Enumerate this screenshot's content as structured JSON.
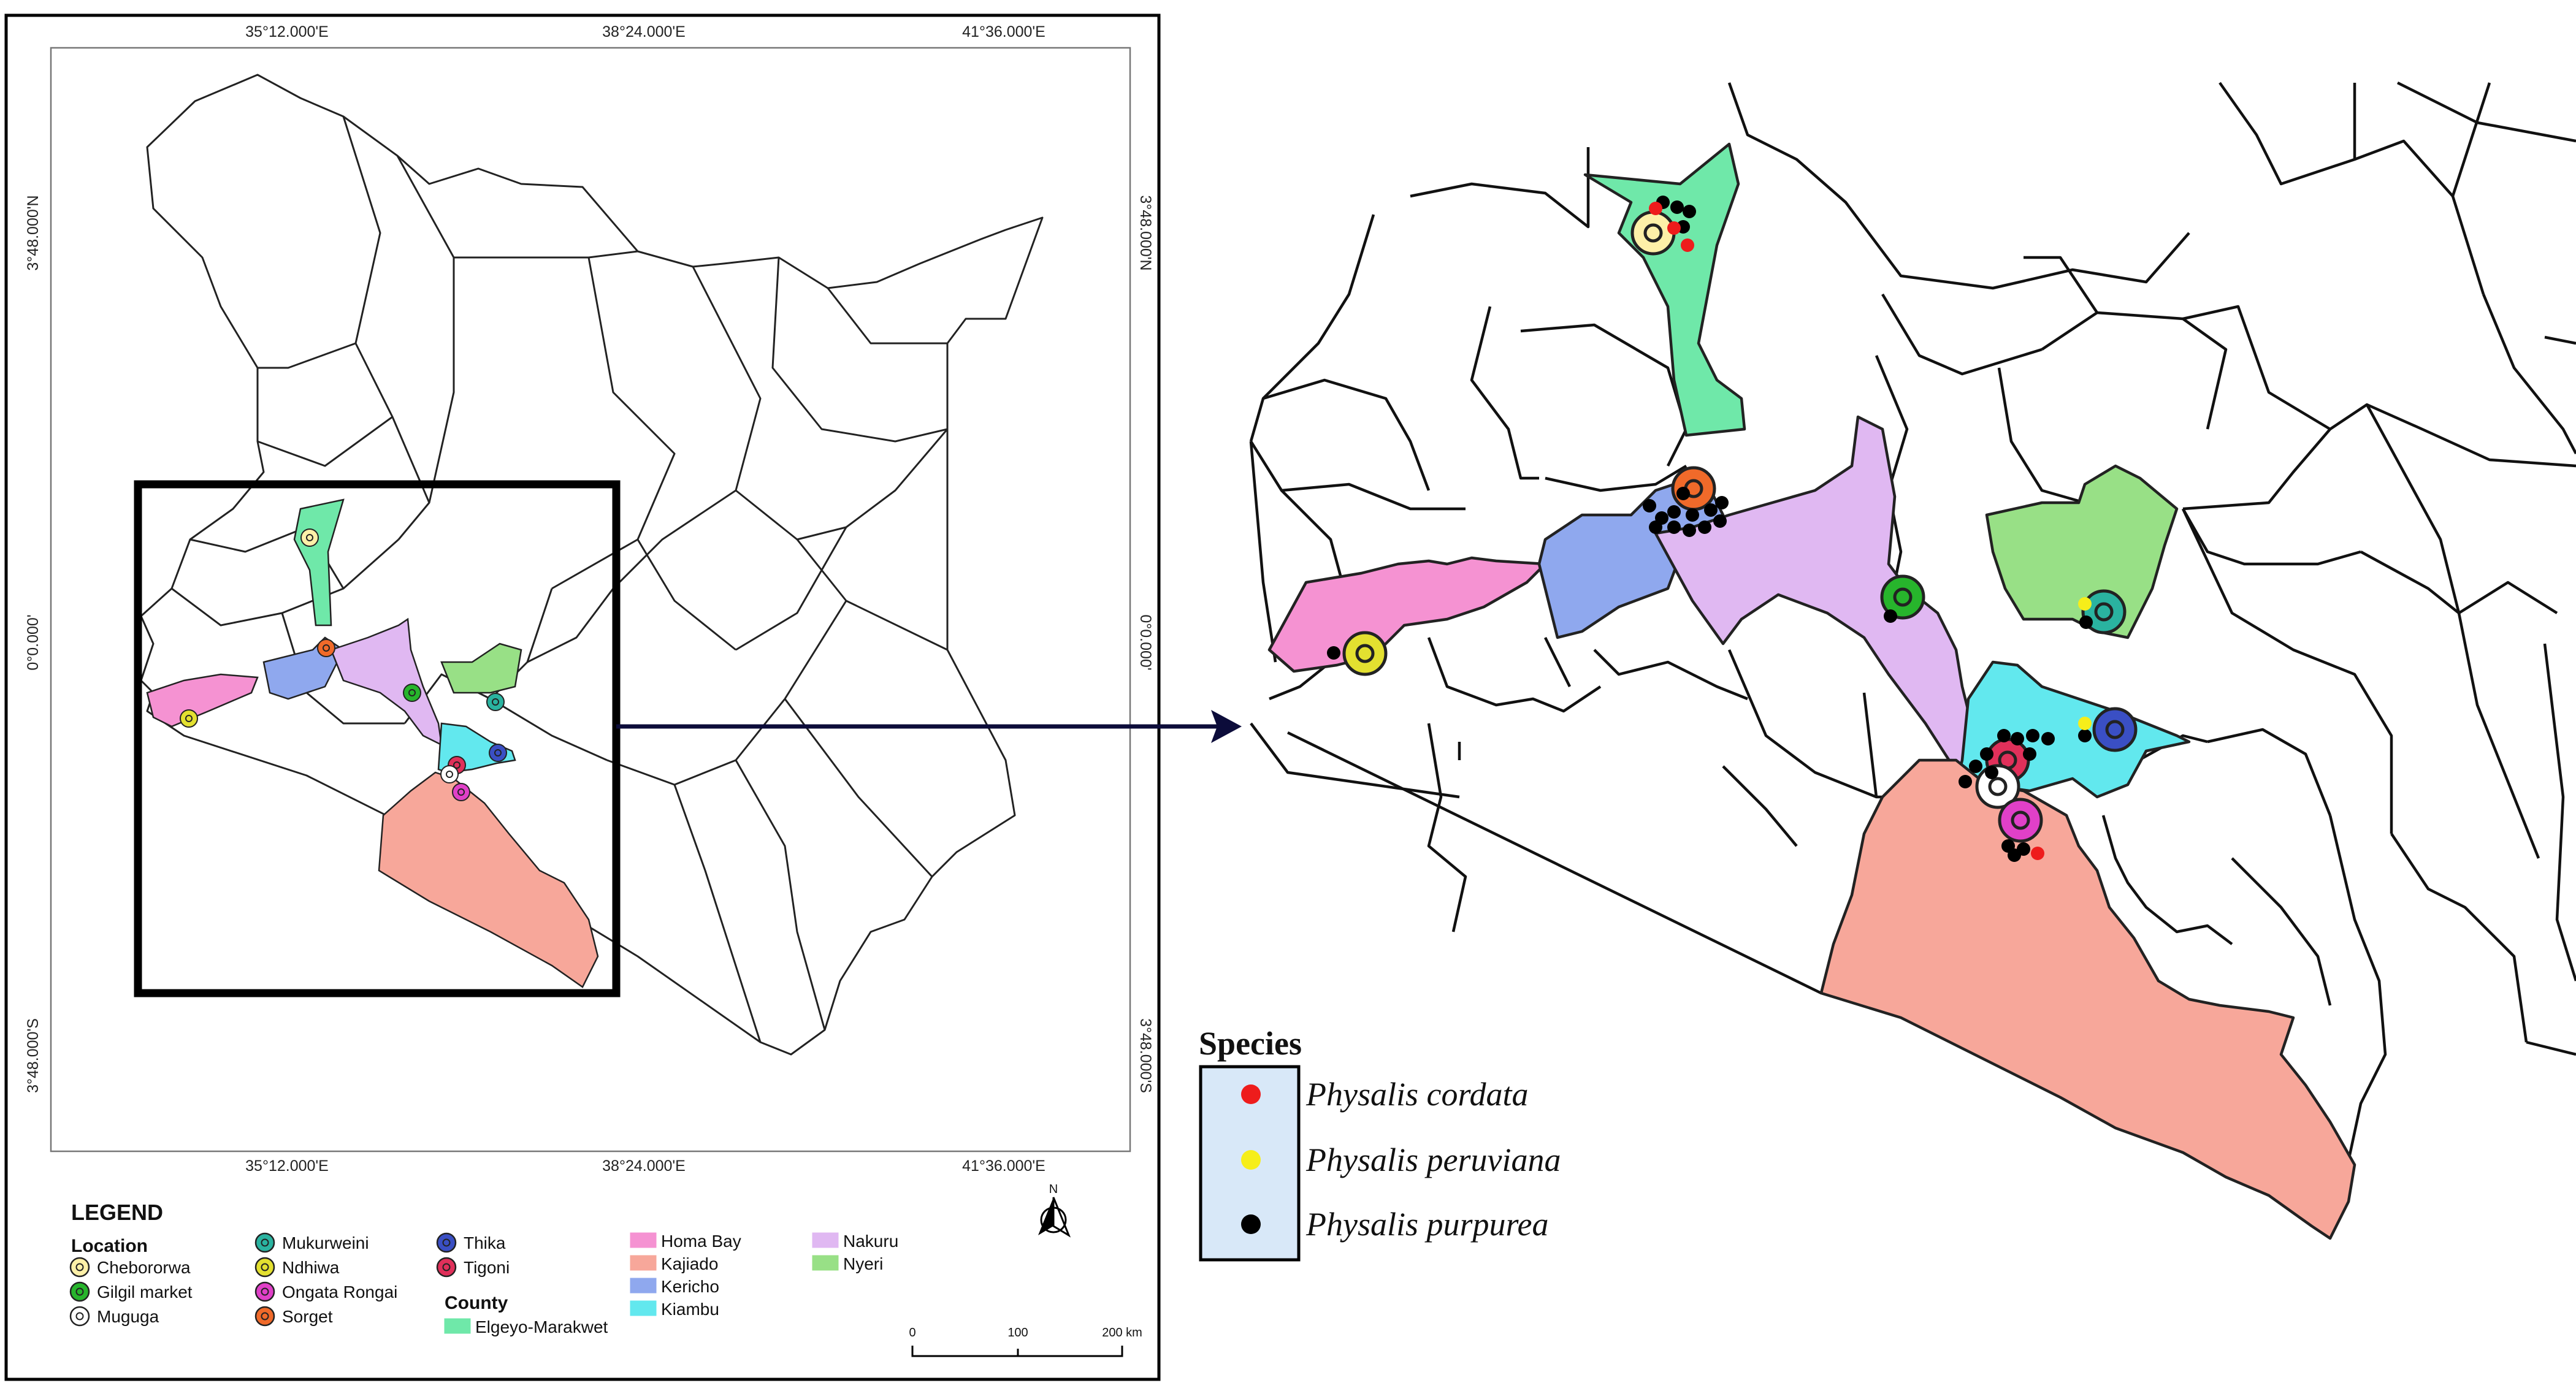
{
  "left_map": {
    "top_ticks": [
      "35°12.000'E",
      "38°24.000'E",
      "41°36.000'E"
    ],
    "bottom_ticks": [
      "35°12.000'E",
      "38°24.000'E",
      "41°36.000'E"
    ],
    "left_ticks": [
      "3°48.000'N",
      "0°0.000'",
      "3°48.000'S"
    ],
    "right_ticks": [
      "3°48.000'N",
      "0°0.000'",
      "3°48.000'S"
    ],
    "north_label": "N"
  },
  "legend": {
    "title": "LEGEND",
    "location_heading": "Location",
    "county_heading": "County",
    "locations": [
      {
        "name": "Chebororwa",
        "color": "#fdf0a8"
      },
      {
        "name": "Gilgil market",
        "color": "#27b52c"
      },
      {
        "name": "Muguga",
        "color": "#ffffff"
      },
      {
        "name": "Mukurweini",
        "color": "#2ab3a0"
      },
      {
        "name": "Ndhiwa",
        "color": "#e3e030"
      },
      {
        "name": "Ongata Rongai",
        "color": "#e040c8"
      },
      {
        "name": "Sorget",
        "color": "#f06a2a"
      },
      {
        "name": "Thika",
        "color": "#3a4fc4"
      },
      {
        "name": "Tigoni",
        "color": "#e0305a"
      }
    ],
    "counties": [
      {
        "name": "Elgeyo-Marakwet",
        "color": "#6fe8a9"
      },
      {
        "name": "Homa Bay",
        "color": "#f592d2"
      },
      {
        "name": "Kajiado",
        "color": "#f7a79a"
      },
      {
        "name": "Kericho",
        "color": "#8fa8ee"
      },
      {
        "name": "Kiambu",
        "color": "#62e8ee"
      },
      {
        "name": "Nakuru",
        "color": "#e0b8f2"
      },
      {
        "name": "Nyeri",
        "color": "#98e086"
      }
    ],
    "scale_labels": [
      "0",
      "100",
      "200 km"
    ]
  },
  "species_legend": {
    "title": "Species",
    "items": [
      {
        "name": "Physalis cordata",
        "color": "#ee1c1c"
      },
      {
        "name": "Physalis peruviana",
        "color": "#f6ee1a"
      },
      {
        "name": "Physalis purpurea",
        "color": "#000000"
      }
    ]
  }
}
